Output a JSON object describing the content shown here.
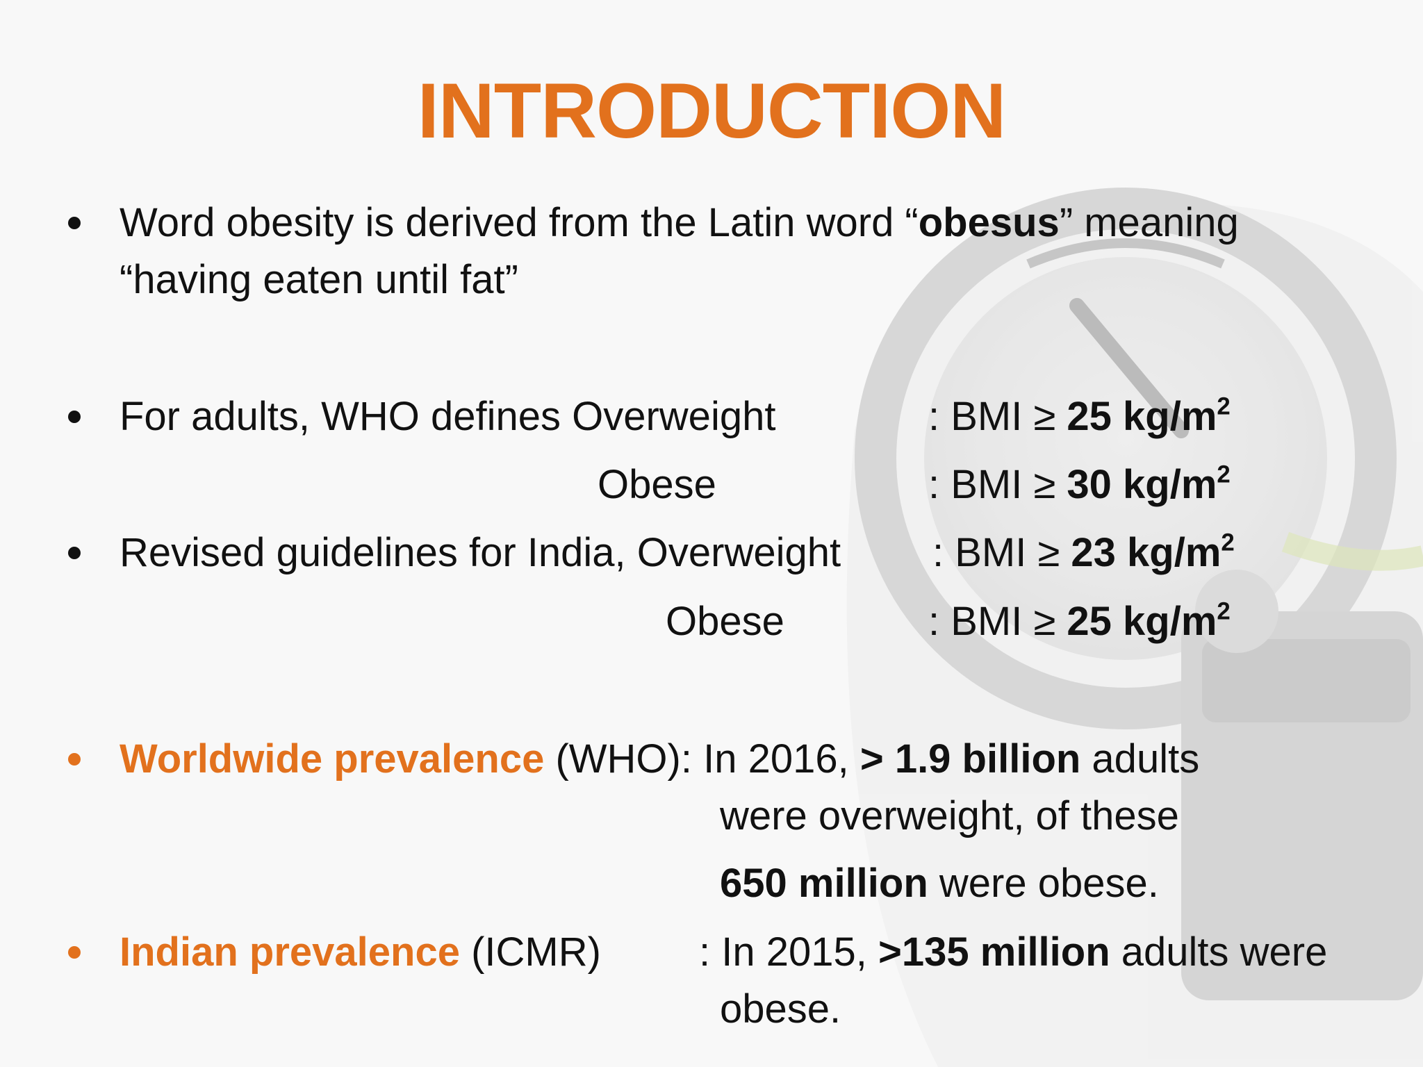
{
  "title": "INTRODUCTION",
  "bullet1": {
    "line1_pre": "Word obesity is derived from the Latin word “",
    "line1_bold": "obesus",
    "line1_post": "” meaning",
    "line2": "“having eaten until fat”"
  },
  "bullet2": {
    "label": "For adults, WHO defines Overweight",
    "label_obese": "Obese",
    "overweight": {
      "prefix": ": BMI ≥ ",
      "value": "25 kg/m",
      "sup": "2"
    },
    "obese": {
      "prefix": ": BMI ≥ ",
      "value": "30 kg/m",
      "sup": "2"
    }
  },
  "bullet3": {
    "label": "Revised guidelines for India, Overweight",
    "label_obese": "Obese",
    "overweight": {
      "prefix": ": BMI ≥ ",
      "value": "23 kg/m",
      "sup": "2"
    },
    "obese": {
      "prefix": ": BMI ≥ ",
      "value": "25 kg/m",
      "sup": "2"
    }
  },
  "bullet4": {
    "label_orange": "Worldwide prevalence",
    "label_rest": " (WHO): ",
    "line1_pre": "In 2016, ",
    "line1_bold": "> 1.9 billion",
    "line1_post": " adults",
    "line2": "were overweight, of these",
    "line3_bold": "650 million",
    "line3_post": " were obese."
  },
  "bullet5": {
    "label_orange": "Indian prevalence",
    "label_rest": " (ICMR)",
    "colon": ":",
    "line1_pre": "In 2015, ",
    "line1_bold": ">135 million",
    "line1_post": " adults were",
    "line2": "obese."
  },
  "colors": {
    "accent": "#e2711d",
    "text": "#111111",
    "background": "#f7f7f7"
  }
}
